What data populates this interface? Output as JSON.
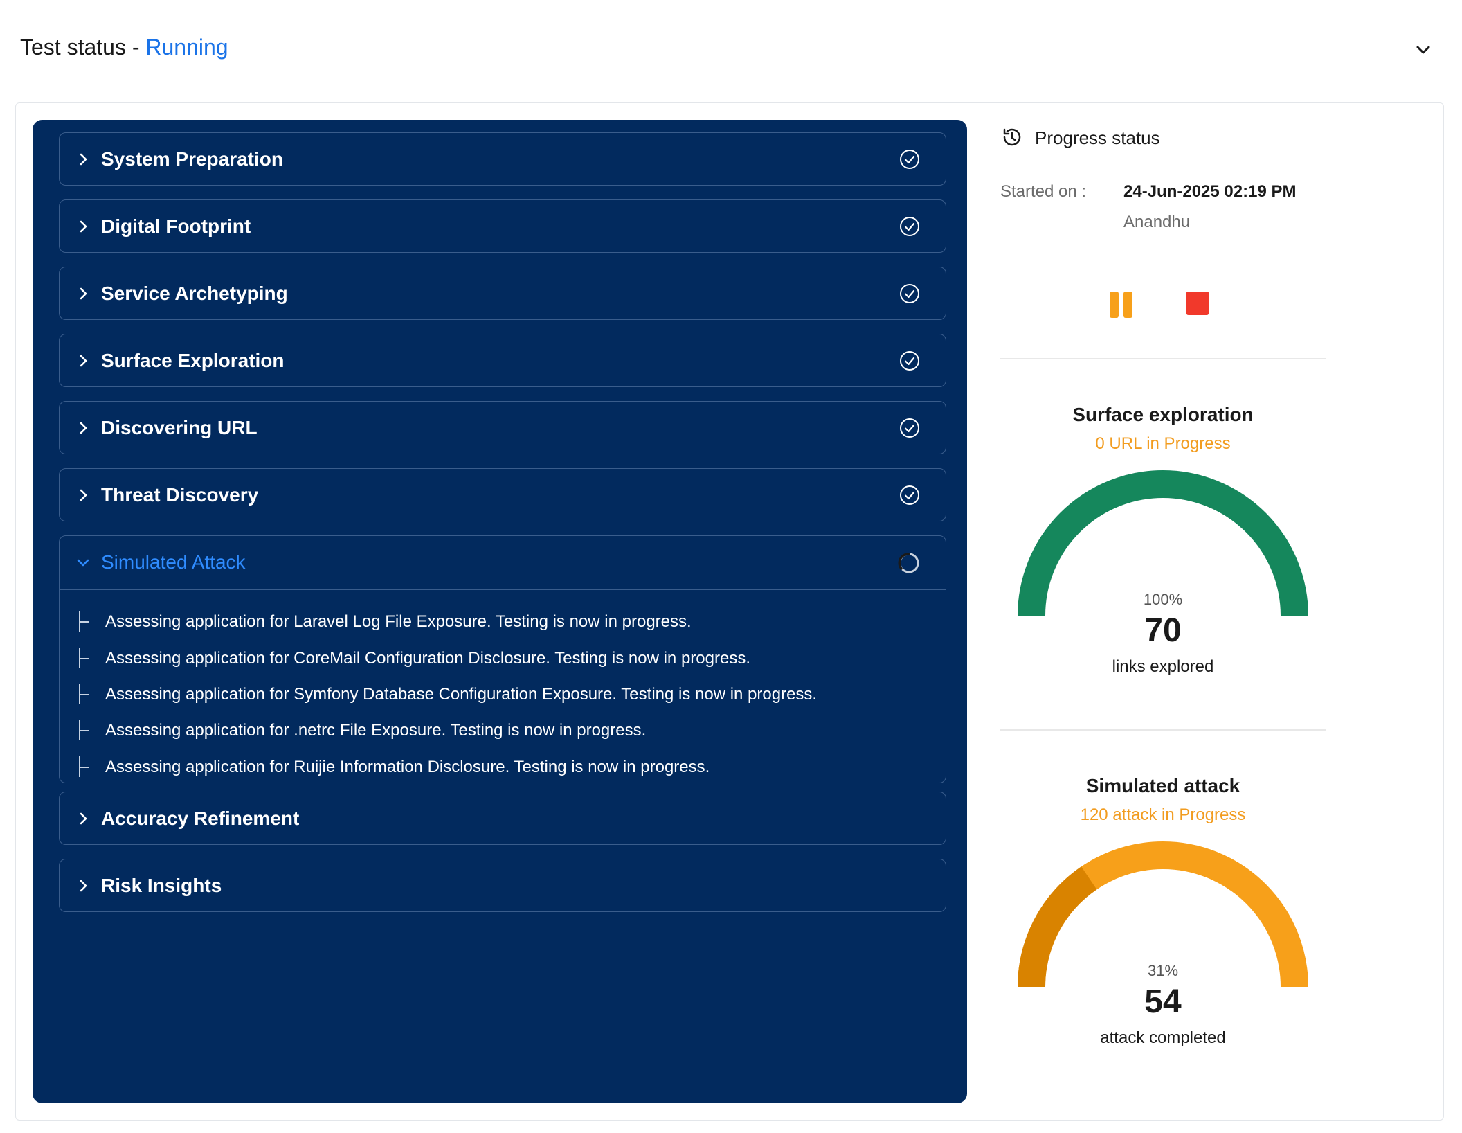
{
  "header": {
    "title_prefix": "Test status - ",
    "status": "Running",
    "collapse_icon": "chevron-down-icon"
  },
  "steps": [
    {
      "label": "System Preparation",
      "state": "done"
    },
    {
      "label": "Digital Footprint",
      "state": "done"
    },
    {
      "label": "Service Archetyping",
      "state": "done"
    },
    {
      "label": "Surface Exploration",
      "state": "done"
    },
    {
      "label": "Discovering URL",
      "state": "done"
    },
    {
      "label": "Threat Discovery",
      "state": "done"
    },
    {
      "label": "Simulated Attack",
      "state": "in-progress"
    },
    {
      "label": "Accuracy Refinement",
      "state": "pending"
    },
    {
      "label": "Risk Insights",
      "state": "pending"
    }
  ],
  "simulated_attack_log": [
    "Assessing application for Laravel Log File Exposure. Testing is now in progress.",
    "Assessing application for CoreMail Configuration Disclosure. Testing is now in progress.",
    "Assessing application for Symfony Database Configuration Exposure. Testing is now in progress.",
    "Assessing application for .netrc File Exposure. Testing is now in progress.",
    "Assessing application for Ruijie Information Disclosure. Testing is now in progress."
  ],
  "progress": {
    "title": "Progress status",
    "started_label": "Started on :",
    "started_date": "24-Jun-2025 02:19 PM",
    "started_by": "Anandhu"
  },
  "colors": {
    "panel_bg": "#022a5e",
    "accent_blue": "#2f8cff",
    "status_blue": "#1a73e8",
    "green": "#15875c",
    "orange": "#f7a01a",
    "orange_dark": "#d98300",
    "red": "#f1392b"
  },
  "surface": {
    "title": "Surface exploration",
    "subtitle": "0 URL in Progress",
    "percent": 100,
    "percent_label": "100%",
    "value": "70",
    "caption": "links explored"
  },
  "attack": {
    "title": "Simulated attack",
    "subtitle": "120 attack in Progress",
    "percent": 31,
    "percent_label": "31%",
    "value": "54",
    "caption": "attack completed"
  }
}
